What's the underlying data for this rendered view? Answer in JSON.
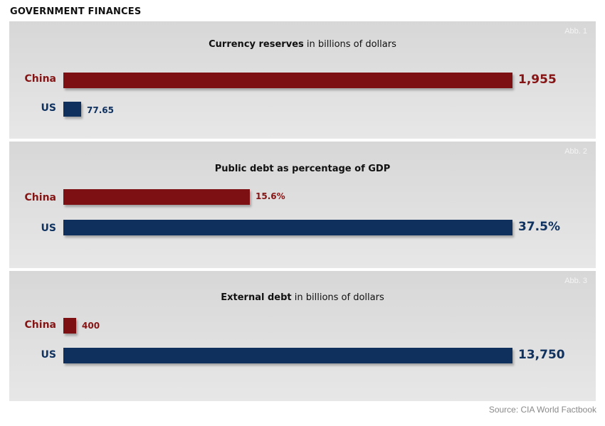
{
  "page": {
    "title": "GOVERNMENT FINANCES",
    "source": "Source: CIA World Factbook"
  },
  "chart_data": [
    {
      "type": "bar",
      "orientation": "horizontal",
      "tag": "Abb. 1",
      "title_bold": "Currency reserves",
      "title_rest": "in billions of dollars",
      "categories": [
        "China",
        "US"
      ],
      "values": [
        1955,
        77.65
      ],
      "value_labels": [
        "1,955",
        "77.65"
      ],
      "colors": [
        "#7d1013",
        "#0f2f5d"
      ]
    },
    {
      "type": "bar",
      "orientation": "horizontal",
      "tag": "Abb. 2",
      "title_bold": "Public debt as percentage of GDP",
      "title_rest": "",
      "categories": [
        "China",
        "US"
      ],
      "values": [
        15.6,
        37.5
      ],
      "value_labels": [
        "15.6%",
        "37.5%"
      ],
      "colors": [
        "#7d1013",
        "#0f2f5d"
      ]
    },
    {
      "type": "bar",
      "orientation": "horizontal",
      "tag": "Abb. 3",
      "title_bold": "External debt",
      "title_rest": "in billions of dollars",
      "categories": [
        "China",
        "US"
      ],
      "values": [
        400,
        13750
      ],
      "value_labels": [
        "400",
        "13,750"
      ],
      "colors": [
        "#7d1013",
        "#0f2f5d"
      ]
    }
  ]
}
